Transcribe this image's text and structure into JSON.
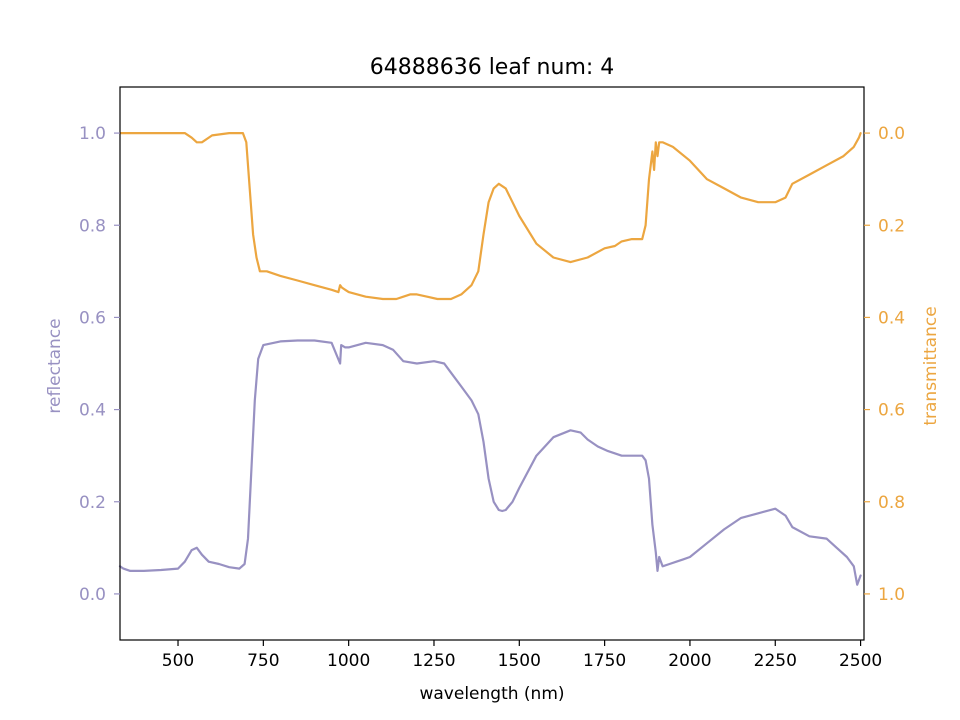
{
  "colors": {
    "reflectance": "#9891c2",
    "transmittance": "#eca640",
    "axis": "#000000"
  },
  "chart_data": {
    "type": "line",
    "title": "64888636 leaf num: 4",
    "xlabel": "wavelength (nm)",
    "ylabel_left": "reflectance",
    "ylabel_right": "transmittance",
    "xlim": [
      330,
      2510
    ],
    "ylim_left": [
      -0.1,
      1.1
    ],
    "ylim_right": [
      1.1,
      -0.1
    ],
    "right_axis_inverted": true,
    "grid": false,
    "x_ticks": [
      500,
      750,
      1000,
      1250,
      1500,
      1750,
      2000,
      2250,
      2500
    ],
    "x_tick_labels": [
      "500",
      "750",
      "1000",
      "1250",
      "1500",
      "1750",
      "2000",
      "2250",
      "2500"
    ],
    "y_left_ticks": [
      0.0,
      0.2,
      0.4,
      0.6,
      0.8,
      1.0
    ],
    "y_left_tick_labels": [
      "0.0",
      "0.2",
      "0.4",
      "0.6",
      "0.8",
      "1.0"
    ],
    "y_right_ticks": [
      0.0,
      0.2,
      0.4,
      0.6,
      0.8,
      1.0
    ],
    "y_right_tick_labels": [
      "0.0",
      "0.2",
      "0.4",
      "0.6",
      "0.8",
      "1.0"
    ],
    "series": [
      {
        "axis": "left",
        "color": "#9891c2",
        "x": [
          330,
          340,
          360,
          400,
          450,
          500,
          520,
          540,
          555,
          570,
          590,
          620,
          650,
          680,
          695,
          705,
          715,
          725,
          735,
          750,
          800,
          850,
          900,
          950,
          975,
          978,
          990,
          1000,
          1050,
          1100,
          1130,
          1160,
          1200,
          1250,
          1280,
          1300,
          1330,
          1360,
          1380,
          1395,
          1410,
          1425,
          1440,
          1450,
          1460,
          1480,
          1500,
          1550,
          1600,
          1650,
          1680,
          1700,
          1730,
          1760,
          1800,
          1830,
          1860,
          1870,
          1880,
          1890,
          1900,
          1905,
          1910,
          1920,
          1940,
          1960,
          1980,
          2000,
          2050,
          2100,
          2150,
          2200,
          2250,
          2280,
          2300,
          2350,
          2400,
          2430,
          2460,
          2480,
          2490,
          2500
        ],
        "y": [
          0.06,
          0.055,
          0.05,
          0.05,
          0.052,
          0.055,
          0.07,
          0.095,
          0.1,
          0.085,
          0.07,
          0.065,
          0.058,
          0.055,
          0.065,
          0.12,
          0.27,
          0.42,
          0.51,
          0.54,
          0.548,
          0.55,
          0.55,
          0.545,
          0.5,
          0.54,
          0.535,
          0.535,
          0.545,
          0.54,
          0.53,
          0.505,
          0.5,
          0.505,
          0.5,
          0.48,
          0.45,
          0.42,
          0.39,
          0.33,
          0.25,
          0.2,
          0.182,
          0.18,
          0.182,
          0.2,
          0.23,
          0.3,
          0.34,
          0.355,
          0.35,
          0.335,
          0.32,
          0.31,
          0.3,
          0.3,
          0.3,
          0.29,
          0.25,
          0.15,
          0.09,
          0.05,
          0.08,
          0.06,
          0.065,
          0.07,
          0.075,
          0.08,
          0.11,
          0.14,
          0.165,
          0.175,
          0.185,
          0.17,
          0.145,
          0.125,
          0.12,
          0.1,
          0.08,
          0.06,
          0.02,
          0.04
        ]
      },
      {
        "axis": "right",
        "color": "#eca640",
        "x": [
          330,
          345,
          400,
          450,
          500,
          520,
          540,
          555,
          570,
          600,
          650,
          680,
          690,
          700,
          710,
          720,
          730,
          740,
          760,
          800,
          850,
          900,
          950,
          970,
          975,
          980,
          990,
          1000,
          1050,
          1100,
          1140,
          1160,
          1180,
          1200,
          1230,
          1260,
          1300,
          1330,
          1360,
          1380,
          1395,
          1410,
          1425,
          1440,
          1460,
          1480,
          1500,
          1550,
          1600,
          1650,
          1700,
          1750,
          1780,
          1800,
          1830,
          1860,
          1870,
          1880,
          1890,
          1895,
          1900,
          1905,
          1910,
          1920,
          1950,
          2000,
          2050,
          2100,
          2150,
          2200,
          2250,
          2280,
          2300,
          2350,
          2400,
          2450,
          2480,
          2495,
          2500
        ],
        "y": [
          0.0,
          0.0,
          0.0,
          0.0,
          0.0,
          0.0,
          0.01,
          0.02,
          0.02,
          0.005,
          0.0,
          0.0,
          0.0,
          0.02,
          0.12,
          0.22,
          0.27,
          0.3,
          0.3,
          0.31,
          0.32,
          0.33,
          0.34,
          0.345,
          0.33,
          0.335,
          0.34,
          0.345,
          0.355,
          0.36,
          0.36,
          0.355,
          0.35,
          0.35,
          0.355,
          0.36,
          0.36,
          0.35,
          0.33,
          0.3,
          0.22,
          0.15,
          0.12,
          0.11,
          0.12,
          0.15,
          0.18,
          0.24,
          0.27,
          0.28,
          0.27,
          0.25,
          0.245,
          0.235,
          0.23,
          0.23,
          0.2,
          0.1,
          0.04,
          0.08,
          0.02,
          0.05,
          0.02,
          0.02,
          0.03,
          0.06,
          0.1,
          0.12,
          0.14,
          0.15,
          0.15,
          0.14,
          0.11,
          0.09,
          0.07,
          0.05,
          0.03,
          0.01,
          0.0
        ]
      }
    ]
  }
}
